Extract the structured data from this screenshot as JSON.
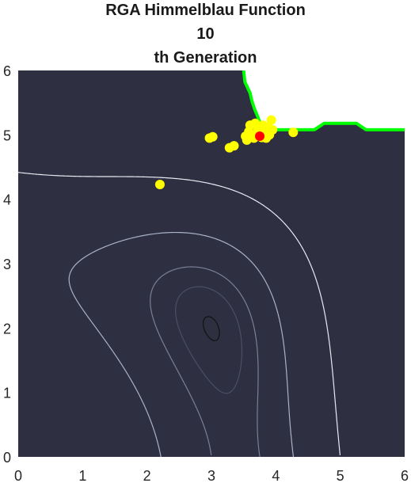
{
  "chart_data": {
    "type": "scatter",
    "title_lines": [
      "RGA Himmelblau Function",
      "10",
      "th Generation"
    ],
    "xlim": [
      0,
      6
    ],
    "ylim": [
      0,
      6
    ],
    "xticks": [
      "0",
      "1",
      "2",
      "3",
      "4",
      "5",
      "6"
    ],
    "yticks": [
      "0",
      "1",
      "2",
      "3",
      "4",
      "5",
      "6"
    ],
    "xlabel": "",
    "ylabel": "",
    "grid": false,
    "plot_background": "#2f2f42",
    "contour_levels": [
      {
        "level": 0.5,
        "color": "#111111"
      },
      {
        "level": 8,
        "color": "#4a4f66"
      },
      {
        "level": 20,
        "color": "#7a8095"
      },
      {
        "level": 60,
        "color": "#a9b2c6"
      },
      {
        "level": 200,
        "color": "#e6ecf2"
      }
    ],
    "feasible_region_color": "#ffffff",
    "boundary_color": "#00ff00",
    "boundary": [
      [
        3.5,
        6.0
      ],
      [
        3.52,
        5.82
      ],
      [
        3.6,
        5.65
      ],
      [
        3.63,
        5.52
      ],
      [
        3.67,
        5.4
      ],
      [
        3.72,
        5.28
      ],
      [
        3.76,
        5.17
      ],
      [
        3.85,
        5.1
      ],
      [
        4.0,
        5.08
      ],
      [
        4.6,
        5.08
      ],
      [
        4.75,
        5.18
      ],
      [
        5.25,
        5.18
      ],
      [
        5.4,
        5.08
      ],
      [
        6.0,
        5.08
      ]
    ],
    "series": [
      {
        "color": "#ffff00",
        "points": [
          [
            2.2,
            4.23
          ],
          [
            2.97,
            4.95
          ],
          [
            3.02,
            4.97
          ],
          [
            3.28,
            4.8
          ],
          [
            3.35,
            4.83
          ],
          [
            3.53,
            4.98
          ],
          [
            3.58,
            5.05
          ],
          [
            3.6,
            5.15
          ],
          [
            3.62,
            5.0
          ],
          [
            3.55,
            4.92
          ],
          [
            3.66,
            4.95
          ],
          [
            3.7,
            5.02
          ],
          [
            3.72,
            5.1
          ],
          [
            3.78,
            4.96
          ],
          [
            3.82,
            5.05
          ],
          [
            3.85,
            4.95
          ],
          [
            3.88,
            5.12
          ],
          [
            3.9,
            5.0
          ],
          [
            3.93,
            5.23
          ],
          [
            3.95,
            5.08
          ],
          [
            3.68,
            5.18
          ],
          [
            3.8,
            5.15
          ],
          [
            4.27,
            5.04
          ]
        ]
      },
      {
        "color": "#ff0000",
        "points": [
          [
            3.75,
            4.98
          ]
        ]
      }
    ]
  }
}
